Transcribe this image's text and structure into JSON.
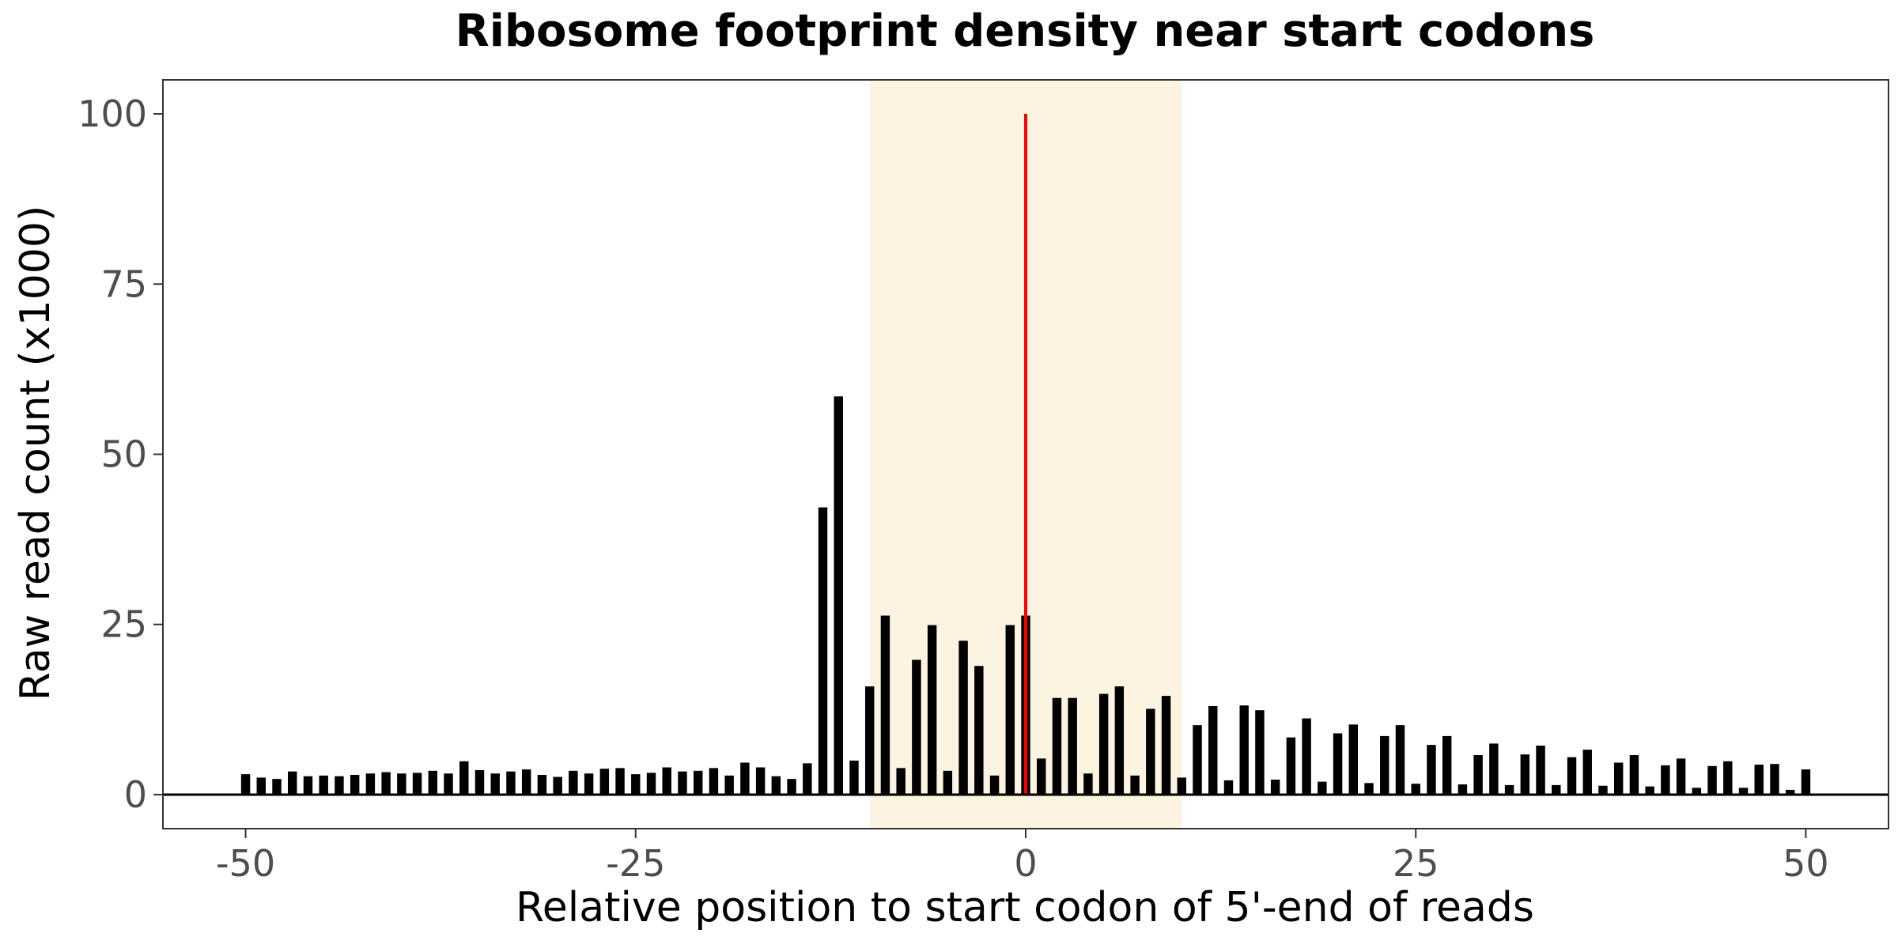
{
  "chart_data": {
    "type": "bar",
    "title": "Ribosome footprint density near start codons",
    "xlabel": "Relative position to start codon of 5'-end of reads",
    "ylabel": "Raw read count (x1000)",
    "xlim": [
      -55.3,
      55.3
    ],
    "ylim": [
      -5,
      105
    ],
    "x_ticks": [
      -50,
      -25,
      0,
      25,
      50
    ],
    "x_tick_labels": [
      "-50",
      "-25",
      "0",
      "25",
      "50"
    ],
    "y_ticks": [
      0,
      25,
      50,
      75,
      100
    ],
    "y_tick_labels": [
      "0",
      "25",
      "50",
      "75",
      "100"
    ],
    "grid": false,
    "legend": "none",
    "highlight_region": {
      "x_start": -10,
      "x_end": 10,
      "color": "#fdf3e1"
    },
    "reference_line": {
      "x": 0,
      "y_start": 0,
      "y_end": 100,
      "color": "#ff0000"
    },
    "baseline": {
      "y": 0,
      "color": "#000000"
    },
    "bar_color": "#000000",
    "series": [
      {
        "x": [
          -50,
          -49,
          -48,
          -47,
          -46,
          -45,
          -44,
          -43,
          -42,
          -41,
          -40,
          -39,
          -38,
          -37,
          -36,
          -35,
          -34,
          -33,
          -32,
          -31,
          -30,
          -29,
          -28,
          -27,
          -26,
          -25,
          -24,
          -23,
          -22,
          -21,
          -20,
          -19,
          -18,
          -17,
          -16,
          -15,
          -14,
          -13,
          -12,
          -11,
          -10,
          -9,
          -8,
          -7,
          -6,
          -5,
          -4,
          -3,
          -2,
          -1,
          0,
          1,
          2,
          3,
          4,
          5,
          6,
          7,
          8,
          9,
          10,
          11,
          12,
          13,
          14,
          15,
          16,
          17,
          18,
          19,
          20,
          21,
          22,
          23,
          24,
          25,
          26,
          27,
          28,
          29,
          30,
          31,
          32,
          33,
          34,
          35,
          36,
          37,
          38,
          39,
          40,
          41,
          42,
          43,
          44,
          45,
          46,
          47,
          48,
          49,
          50
        ],
        "values": [
          3.0,
          2.5,
          2.3,
          3.4,
          2.7,
          2.8,
          2.7,
          2.9,
          3.1,
          3.3,
          3.1,
          3.2,
          3.5,
          3.1,
          4.9,
          3.6,
          3.1,
          3.4,
          3.7,
          2.9,
          2.6,
          3.5,
          3.1,
          3.8,
          3.9,
          3.0,
          3.2,
          4.0,
          3.4,
          3.5,
          3.9,
          2.8,
          4.7,
          4.0,
          2.7,
          2.3,
          4.6,
          42.2,
          58.5,
          5.0,
          15.9,
          26.3,
          3.9,
          19.8,
          24.9,
          3.5,
          22.6,
          18.9,
          2.8,
          24.9,
          26.3,
          5.3,
          14.2,
          14.2,
          3.1,
          14.8,
          15.9,
          2.8,
          12.6,
          14.5,
          2.5,
          10.2,
          13.0,
          2.1,
          13.1,
          12.4,
          2.2,
          8.4,
          11.2,
          1.9,
          9.0,
          10.3,
          1.7,
          8.6,
          10.2,
          1.6,
          7.3,
          8.6,
          1.5,
          5.8,
          7.5,
          1.4,
          5.9,
          7.2,
          1.4,
          5.5,
          6.6,
          1.3,
          4.7,
          5.8,
          1.2,
          4.3,
          5.3,
          1.0,
          4.2,
          4.9,
          1.0,
          4.4,
          4.5,
          0.7,
          3.7
        ]
      }
    ]
  }
}
